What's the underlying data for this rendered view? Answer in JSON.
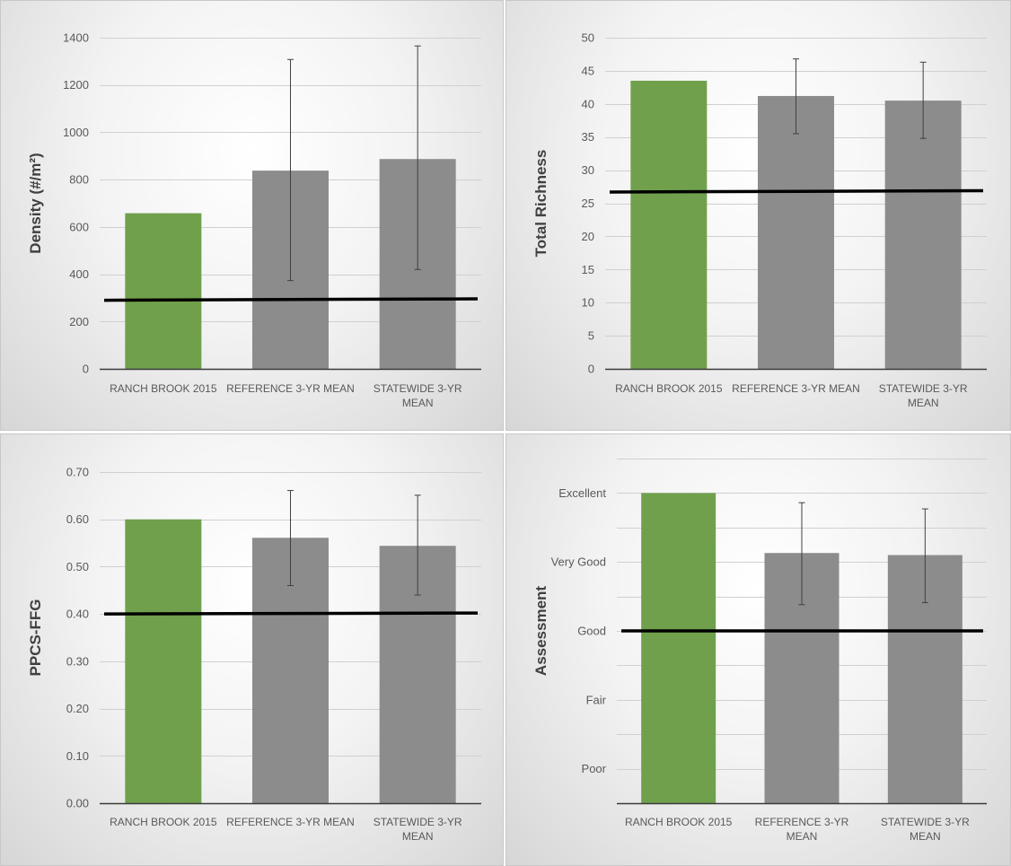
{
  "chart_data": [
    {
      "type": "bar",
      "ylabel": "Density (#/m²)",
      "categories": [
        [
          "RANCH BROOK 2015"
        ],
        [
          "REFERENCE 3-YR MEAN"
        ],
        [
          "STATEWIDE 3-YR",
          "MEAN"
        ]
      ],
      "values": [
        658,
        838,
        887
      ],
      "error_low": [
        null,
        373,
        420
      ],
      "error_high": [
        null,
        1308,
        1365
      ],
      "bar_colors": [
        "#70a04c",
        "#8c8c8c",
        "#8c8c8c"
      ],
      "ylim": [
        0,
        1400
      ],
      "yticks": [
        0,
        200,
        400,
        600,
        800,
        1000,
        1200,
        1400
      ],
      "ytick_labels": [
        "0",
        "200",
        "400",
        "600",
        "800",
        "1000",
        "1200",
        "1400"
      ],
      "threshold_line": [
        290,
        296
      ],
      "grid": true
    },
    {
      "type": "bar",
      "ylabel": "Total Richness",
      "categories": [
        [
          "RANCH BROOK 2015"
        ],
        [
          "REFERENCE 3-YR MEAN"
        ],
        [
          "STATEWIDE 3-YR",
          "MEAN"
        ]
      ],
      "values": [
        43.5,
        41.2,
        40.5
      ],
      "error_low": [
        null,
        35.5,
        34.8
      ],
      "error_high": [
        null,
        46.8,
        46.3
      ],
      "bar_colors": [
        "#70a04c",
        "#8c8c8c",
        "#8c8c8c"
      ],
      "ylim": [
        0,
        50
      ],
      "yticks": [
        0,
        5,
        10,
        15,
        20,
        25,
        30,
        35,
        40,
        45,
        50
      ],
      "ytick_labels": [
        "0",
        "5",
        "10",
        "15",
        "20",
        "25",
        "30",
        "35",
        "40",
        "45",
        "50"
      ],
      "threshold_line": [
        26.7,
        26.9
      ],
      "grid": true
    },
    {
      "type": "bar",
      "ylabel": "PPCS-FFG",
      "categories": [
        [
          "RANCH BROOK 2015"
        ],
        [
          "REFERENCE 3-YR MEAN"
        ],
        [
          "STATEWIDE 3-YR",
          "MEAN"
        ]
      ],
      "values": [
        0.6,
        0.561,
        0.544
      ],
      "error_low": [
        null,
        0.46,
        0.44
      ],
      "error_high": [
        null,
        0.661,
        0.651
      ],
      "bar_colors": [
        "#70a04c",
        "#8c8c8c",
        "#8c8c8c"
      ],
      "ylim": [
        0,
        0.7
      ],
      "yticks": [
        0,
        0.1,
        0.2,
        0.3,
        0.4,
        0.5,
        0.6,
        0.7
      ],
      "ytick_labels": [
        "0.00",
        "0.10",
        "0.20",
        "0.30",
        "0.40",
        "0.50",
        "0.60",
        "0.70"
      ],
      "threshold_line": [
        0.4,
        0.402
      ],
      "grid": true
    },
    {
      "type": "bar",
      "ylabel": "Assessment",
      "categories": [
        [
          "RANCH BROOK 2015"
        ],
        [
          "REFERENCE 3-YR",
          "MEAN"
        ],
        [
          "STATEWIDE 3-YR",
          "MEAN"
        ]
      ],
      "values": [
        4.5,
        3.63,
        3.6
      ],
      "error_low": [
        null,
        2.88,
        2.91
      ],
      "error_high": [
        null,
        4.36,
        4.27
      ],
      "bar_colors": [
        "#70a04c",
        "#8c8c8c",
        "#8c8c8c"
      ],
      "ylim": [
        0,
        5
      ],
      "yticks": [
        0.5,
        1.5,
        2.5,
        3.5,
        4.5
      ],
      "ytick_labels": [
        "Poor",
        "Fair",
        "Good",
        "Very Good",
        "Excellent"
      ],
      "gridlines": [
        0,
        0.5,
        1,
        1.5,
        2,
        2.5,
        3,
        3.5,
        4,
        4.5,
        5
      ],
      "threshold_line": [
        2.5,
        2.5
      ],
      "grid": true
    }
  ]
}
